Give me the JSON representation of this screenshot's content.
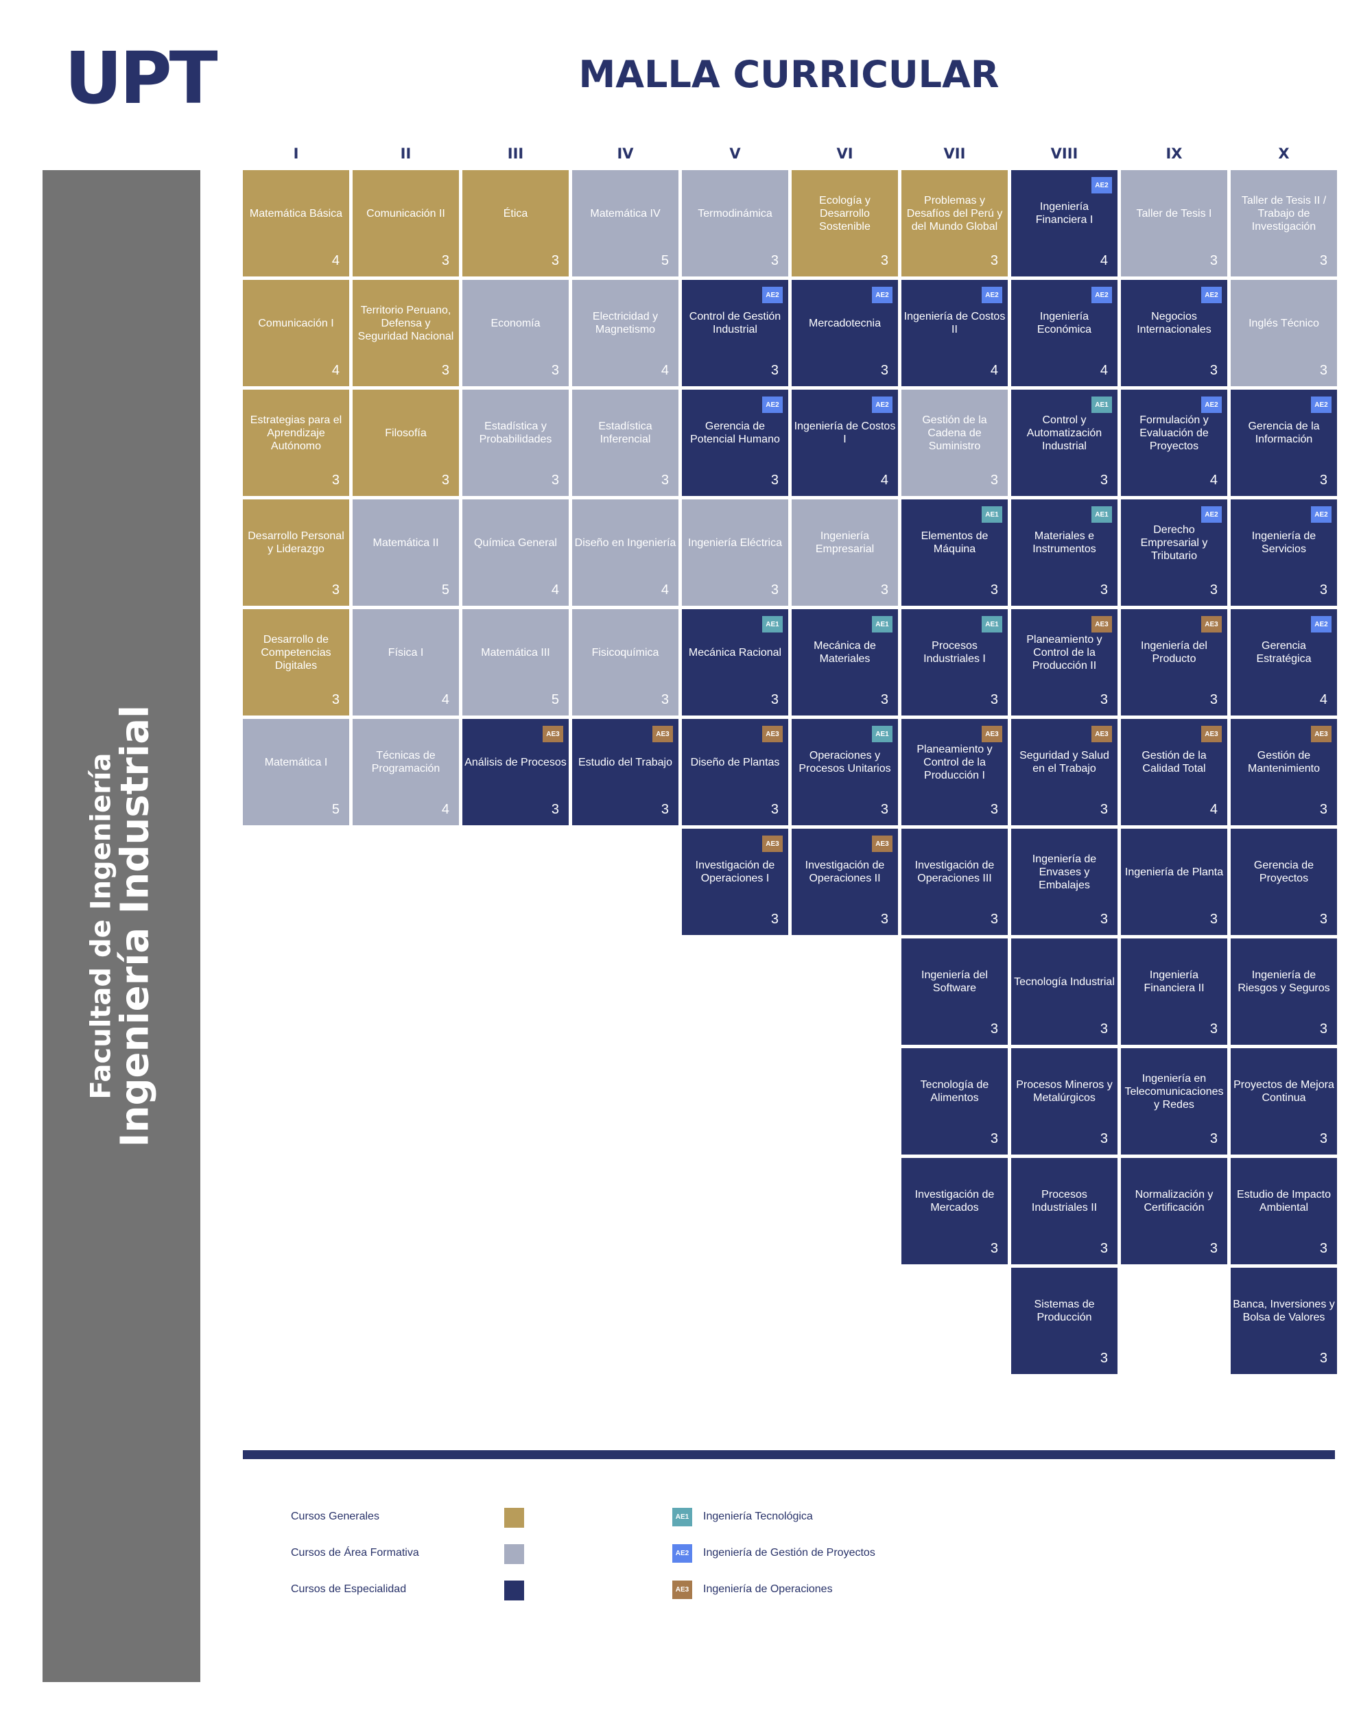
{
  "header": {
    "logo": "UPT",
    "title": "MALLA CURRICULAR"
  },
  "sidebar": {
    "faculty": "Facultad de Ingeniería",
    "program": "Ingeniería Industrial"
  },
  "semesters": [
    "I",
    "II",
    "III",
    "IV",
    "V",
    "VI",
    "VII",
    "VIII",
    "IX",
    "X"
  ],
  "columns": [
    [
      {
        "name": "Matemática Básica",
        "credits": "4",
        "type": "gen"
      },
      {
        "name": "Comunicación I",
        "credits": "4",
        "type": "gen"
      },
      {
        "name": "Estrategias para el Aprendizaje Autónomo",
        "credits": "3",
        "type": "gen"
      },
      {
        "name": "Desarrollo Personal y Liderazgo",
        "credits": "3",
        "type": "gen"
      },
      {
        "name": "Desarrollo de Competencias Digitales",
        "credits": "3",
        "type": "gen"
      },
      {
        "name": "Matemática I",
        "credits": "5",
        "type": "form"
      }
    ],
    [
      {
        "name": "Comunicación II",
        "credits": "3",
        "type": "gen"
      },
      {
        "name": "Territorio Peruano, Defensa y Seguridad Nacional",
        "credits": "3",
        "type": "gen"
      },
      {
        "name": "Filosofía",
        "credits": "3",
        "type": "gen"
      },
      {
        "name": "Matemática II",
        "credits": "5",
        "type": "form"
      },
      {
        "name": "Física I",
        "credits": "4",
        "type": "form"
      },
      {
        "name": "Técnicas de Programación",
        "credits": "4",
        "type": "form"
      }
    ],
    [
      {
        "name": "Ética",
        "credits": "3",
        "type": "gen"
      },
      {
        "name": "Economía",
        "credits": "3",
        "type": "form"
      },
      {
        "name": "Estadística y Probabilidades",
        "credits": "3",
        "type": "form"
      },
      {
        "name": "Química General",
        "credits": "4",
        "type": "form"
      },
      {
        "name": "Matemática III",
        "credits": "5",
        "type": "form"
      },
      {
        "name": "Análisis de Procesos",
        "credits": "3",
        "type": "spec",
        "badge": "AE3"
      }
    ],
    [
      {
        "name": "Matemática IV",
        "credits": "5",
        "type": "form"
      },
      {
        "name": "Electricidad y Magnetismo",
        "credits": "4",
        "type": "form"
      },
      {
        "name": "Estadística Inferencial",
        "credits": "3",
        "type": "form"
      },
      {
        "name": "Diseño en Ingeniería",
        "credits": "4",
        "type": "form"
      },
      {
        "name": "Fisicoquímica",
        "credits": "3",
        "type": "form"
      },
      {
        "name": "Estudio del Trabajo",
        "credits": "3",
        "type": "spec",
        "badge": "AE3"
      }
    ],
    [
      {
        "name": "Termodinámica",
        "credits": "3",
        "type": "form"
      },
      {
        "name": "Control de Gestión Industrial",
        "credits": "3",
        "type": "spec",
        "badge": "AE2"
      },
      {
        "name": "Gerencia de Potencial Humano",
        "credits": "3",
        "type": "spec",
        "badge": "AE2"
      },
      {
        "name": "Ingeniería Eléctrica",
        "credits": "3",
        "type": "form"
      },
      {
        "name": "Mecánica Racional",
        "credits": "3",
        "type": "spec",
        "badge": "AE1"
      },
      {
        "name": "Diseño de Plantas",
        "credits": "3",
        "type": "spec",
        "badge": "AE3"
      },
      {
        "name": "Investigación de Operaciones I",
        "credits": "3",
        "type": "spec",
        "badge": "AE3"
      }
    ],
    [
      {
        "name": "Ecología y Desarrollo Sostenible",
        "credits": "3",
        "type": "gen"
      },
      {
        "name": "Mercadotecnia",
        "credits": "3",
        "type": "spec",
        "badge": "AE2"
      },
      {
        "name": "Ingeniería de Costos I",
        "credits": "4",
        "type": "spec",
        "badge": "AE2"
      },
      {
        "name": "Ingeniería Empresarial",
        "credits": "3",
        "type": "form"
      },
      {
        "name": "Mecánica de Materiales",
        "credits": "3",
        "type": "spec",
        "badge": "AE1"
      },
      {
        "name": "Operaciones y Procesos Unitarios",
        "credits": "3",
        "type": "spec",
        "badge": "AE1"
      },
      {
        "name": "Investigación de Operaciones II",
        "credits": "3",
        "type": "spec",
        "badge": "AE3"
      }
    ],
    [
      {
        "name": "Problemas y Desafíos del Perú y del Mundo Global",
        "credits": "3",
        "type": "gen"
      },
      {
        "name": "Ingeniería de Costos II",
        "credits": "4",
        "type": "spec",
        "badge": "AE2"
      },
      {
        "name": "Gestión de la Cadena de Suministro",
        "credits": "3",
        "type": "form"
      },
      {
        "name": "Elementos de Máquina",
        "credits": "3",
        "type": "spec",
        "badge": "AE1"
      },
      {
        "name": "Procesos Industriales I",
        "credits": "3",
        "type": "spec",
        "badge": "AE1"
      },
      {
        "name": "Planeamiento y Control de la Producción I",
        "credits": "3",
        "type": "spec",
        "badge": "AE3"
      },
      {
        "name": "Investigación de Operaciones III",
        "credits": "3",
        "type": "spec"
      },
      {
        "name": "Ingeniería del Software",
        "credits": "3",
        "type": "spec"
      },
      {
        "name": "Tecnología de Alimentos",
        "credits": "3",
        "type": "spec"
      },
      {
        "name": "Investigación de Mercados",
        "credits": "3",
        "type": "spec"
      }
    ],
    [
      {
        "name": "Ingeniería Financiera I",
        "credits": "4",
        "type": "spec",
        "badge": "AE2"
      },
      {
        "name": "Ingeniería Económica",
        "credits": "4",
        "type": "spec",
        "badge": "AE2"
      },
      {
        "name": "Control y Automatización Industrial",
        "credits": "3",
        "type": "spec",
        "badge": "AE1"
      },
      {
        "name": "Materiales e Instrumentos",
        "credits": "3",
        "type": "spec",
        "badge": "AE1"
      },
      {
        "name": "Planeamiento y Control de la Producción II",
        "credits": "3",
        "type": "spec",
        "badge": "AE3"
      },
      {
        "name": "Seguridad y Salud en el Trabajo",
        "credits": "3",
        "type": "spec",
        "badge": "AE3"
      },
      {
        "name": "Ingeniería de Envases y Embalajes",
        "credits": "3",
        "type": "spec"
      },
      {
        "name": "Tecnología Industrial",
        "credits": "3",
        "type": "spec"
      },
      {
        "name": "Procesos Mineros y Metalúrgicos",
        "credits": "3",
        "type": "spec"
      },
      {
        "name": "Procesos Industriales II",
        "credits": "3",
        "type": "spec"
      },
      {
        "name": "Sistemas de Producción",
        "credits": "3",
        "type": "spec"
      }
    ],
    [
      {
        "name": "Taller de Tesis I",
        "credits": "3",
        "type": "form"
      },
      {
        "name": "Negocios Internacionales",
        "credits": "3",
        "type": "spec",
        "badge": "AE2"
      },
      {
        "name": "Formulación y Evaluación de Proyectos",
        "credits": "4",
        "type": "spec",
        "badge": "AE2"
      },
      {
        "name": "Derecho Empresarial y Tributario",
        "credits": "3",
        "type": "spec",
        "badge": "AE2"
      },
      {
        "name": "Ingeniería del Producto",
        "credits": "3",
        "type": "spec",
        "badge": "AE3"
      },
      {
        "name": "Gestión de la Calidad Total",
        "credits": "4",
        "type": "spec",
        "badge": "AE3"
      },
      {
        "name": "Ingeniería de Planta",
        "credits": "3",
        "type": "spec"
      },
      {
        "name": "Ingeniería Financiera II",
        "credits": "3",
        "type": "spec"
      },
      {
        "name": "Ingeniería en Telecomunicaciones y Redes",
        "credits": "3",
        "type": "spec"
      },
      {
        "name": "Normalización y Certificación",
        "credits": "3",
        "type": "spec"
      }
    ],
    [
      {
        "name": "Taller de Tesis II / Trabajo de Investigación",
        "credits": "3",
        "type": "form"
      },
      {
        "name": "Inglés Técnico",
        "credits": "3",
        "type": "form"
      },
      {
        "name": "Gerencia de la Información",
        "credits": "3",
        "type": "spec",
        "badge": "AE2"
      },
      {
        "name": "Ingeniería de Servicios",
        "credits": "3",
        "type": "spec",
        "badge": "AE2"
      },
      {
        "name": "Gerencia Estratégica",
        "credits": "4",
        "type": "spec",
        "badge": "AE2"
      },
      {
        "name": "Gestión de Mantenimiento",
        "credits": "3",
        "type": "spec",
        "badge": "AE3"
      },
      {
        "name": "Gerencia de Proyectos",
        "credits": "3",
        "type": "spec"
      },
      {
        "name": "Ingeniería de Riesgos y Seguros",
        "credits": "3",
        "type": "spec"
      },
      {
        "name": "Proyectos de Mejora Continua",
        "credits": "3",
        "type": "spec"
      },
      {
        "name": "Estudio de Impacto Ambiental",
        "credits": "3",
        "type": "spec"
      },
      {
        "name": "Banca, Inversiones y Bolsa de Valores",
        "credits": "3",
        "type": "spec"
      }
    ]
  ],
  "legend": {
    "course_types": [
      {
        "label": "Cursos Generales",
        "color": "#b89c5a"
      },
      {
        "label": "Cursos de Área Formativa",
        "color": "#a7adc1"
      },
      {
        "label": "Cursos de Especialidad",
        "color": "#283269"
      }
    ],
    "areas": [
      {
        "code": "AE1",
        "label": "Ingeniería Tecnológica",
        "color": "#5fa8b4"
      },
      {
        "code": "AE2",
        "label": "Ingeniería de Gestión de Proyectos",
        "color": "#5b84ee"
      },
      {
        "code": "AE3",
        "label": "Ingeniería de Operaciones",
        "color": "#a77a4c"
      }
    ]
  }
}
